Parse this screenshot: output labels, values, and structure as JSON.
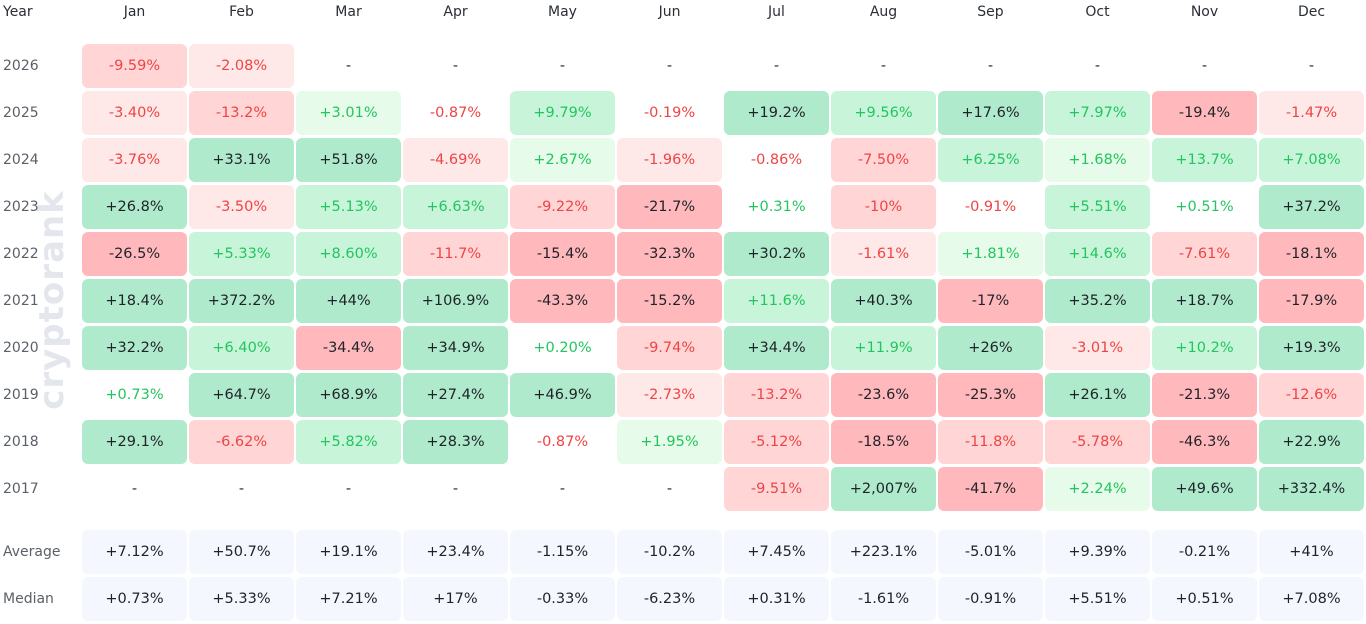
{
  "watermark": "cryptorank",
  "chart_data": {
    "type": "heatmap",
    "year_label": "Year",
    "months": [
      "Jan",
      "Feb",
      "Mar",
      "Apr",
      "May",
      "Jun",
      "Jul",
      "Aug",
      "Sep",
      "Oct",
      "Nov",
      "Dec"
    ],
    "colors": {
      "negative_text": "#ef4444",
      "positive_text": "#22c55e",
      "neg_light": "#fee8e8",
      "neg_mid": "#ffd5d6",
      "neg_dark": "#ffb8bb",
      "pos_light": "#e6fbe9",
      "pos_mid": "#c8f5da",
      "pos_dark": "#aeeacb",
      "stat_bg": "#f4f7fd"
    },
    "rows": [
      {
        "year": "2026",
        "values": [
          "-9.59%",
          "-2.08%",
          "-",
          "-",
          "-",
          "-",
          "-",
          "-",
          "-",
          "-",
          "-",
          "-"
        ]
      },
      {
        "year": "2025",
        "values": [
          "-3.40%",
          "-13.2%",
          "+3.01%",
          "-0.87%",
          "+9.79%",
          "-0.19%",
          "+19.2%",
          "+9.56%",
          "+17.6%",
          "+7.97%",
          "-19.4%",
          "-1.47%"
        ]
      },
      {
        "year": "2024",
        "values": [
          "-3.76%",
          "+33.1%",
          "+51.8%",
          "-4.69%",
          "+2.67%",
          "-1.96%",
          "-0.86%",
          "-7.50%",
          "+6.25%",
          "+1.68%",
          "+13.7%",
          "+7.08%"
        ]
      },
      {
        "year": "2023",
        "values": [
          "+26.8%",
          "-3.50%",
          "+5.13%",
          "+6.63%",
          "-9.22%",
          "-21.7%",
          "+0.31%",
          "-10%",
          "-0.91%",
          "+5.51%",
          "+0.51%",
          "+37.2%"
        ]
      },
      {
        "year": "2022",
        "values": [
          "-26.5%",
          "+5.33%",
          "+8.60%",
          "-11.7%",
          "-15.4%",
          "-32.3%",
          "+30.2%",
          "-1.61%",
          "+1.81%",
          "+14.6%",
          "-7.61%",
          "-18.1%"
        ]
      },
      {
        "year": "2021",
        "values": [
          "+18.4%",
          "+372.2%",
          "+44%",
          "+106.9%",
          "-43.3%",
          "-15.2%",
          "+11.6%",
          "+40.3%",
          "-17%",
          "+35.2%",
          "+18.7%",
          "-17.9%"
        ]
      },
      {
        "year": "2020",
        "values": [
          "+32.2%",
          "+6.40%",
          "-34.4%",
          "+34.9%",
          "+0.20%",
          "-9.74%",
          "+34.4%",
          "+11.9%",
          "+26%",
          "-3.01%",
          "+10.2%",
          "+19.3%"
        ]
      },
      {
        "year": "2019",
        "values": [
          "+0.73%",
          "+64.7%",
          "+68.9%",
          "+27.4%",
          "+46.9%",
          "-2.73%",
          "-13.2%",
          "-23.6%",
          "-25.3%",
          "+26.1%",
          "-21.3%",
          "-12.6%"
        ]
      },
      {
        "year": "2018",
        "values": [
          "+29.1%",
          "-6.62%",
          "+5.82%",
          "+28.3%",
          "-0.87%",
          "+1.95%",
          "-5.12%",
          "-18.5%",
          "-11.8%",
          "-5.78%",
          "-46.3%",
          "+22.9%"
        ]
      },
      {
        "year": "2017",
        "values": [
          "-",
          "-",
          "-",
          "-",
          "-",
          "-",
          "-9.51%",
          "+2,007%",
          "-41.7%",
          "+2.24%",
          "+49.6%",
          "+332.4%"
        ]
      }
    ],
    "stats": [
      {
        "label": "Average",
        "values": [
          "+7.12%",
          "+50.7%",
          "+19.1%",
          "+23.4%",
          "-1.15%",
          "-10.2%",
          "+7.45%",
          "+223.1%",
          "-5.01%",
          "+9.39%",
          "-0.21%",
          "+41%"
        ]
      },
      {
        "label": "Median",
        "values": [
          "+0.73%",
          "+5.33%",
          "+7.21%",
          "+17%",
          "-0.33%",
          "-6.23%",
          "+0.31%",
          "-1.61%",
          "-0.91%",
          "+5.51%",
          "+0.51%",
          "+7.08%"
        ]
      }
    ]
  }
}
